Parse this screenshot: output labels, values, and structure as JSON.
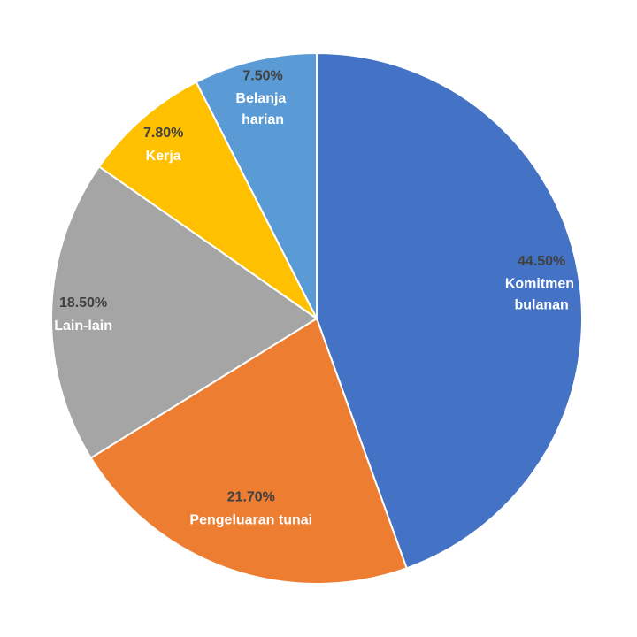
{
  "chart_data": {
    "type": "pie",
    "categories": [
      "Komitmen bulanan",
      "Pengeluaran tunai",
      "Lain-lain",
      "Kerja",
      "Belanja harian"
    ],
    "values": [
      44.5,
      21.7,
      18.5,
      7.8,
      7.5
    ],
    "value_labels": [
      "44.50%",
      "21.70%",
      "18.50%",
      "7.80%",
      "7.50%"
    ],
    "colors": [
      "#4472c4",
      "#ed7d31",
      "#a5a5a5",
      "#ffc000",
      "#5b9bd5"
    ]
  }
}
